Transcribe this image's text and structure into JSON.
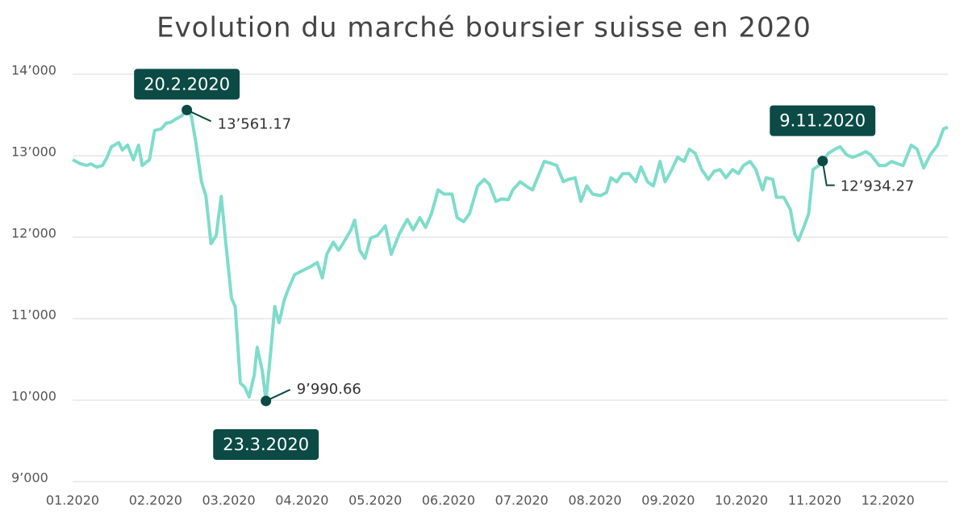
{
  "chart_data": {
    "type": "line",
    "title": "Evolution du marché boursier suisse en 2020",
    "xlim": [
      0,
      11.95
    ],
    "xticks": [
      {
        "value": 0,
        "label": "01.2020"
      },
      {
        "value": 1,
        "label": "02.2020"
      },
      {
        "value": 2,
        "label": "03.2020"
      },
      {
        "value": 3,
        "label": "04.2020"
      },
      {
        "value": 4,
        "label": "05.2020"
      },
      {
        "value": 5,
        "label": "06.2020"
      },
      {
        "value": 6,
        "label": "07.2020"
      },
      {
        "value": 7,
        "label": "08.2020"
      },
      {
        "value": 8,
        "label": "09.2020"
      },
      {
        "value": 9,
        "label": "10.2020"
      },
      {
        "value": 10,
        "label": "11.2020"
      },
      {
        "value": 11,
        "label": "12.2020"
      }
    ],
    "ylim": [
      9000,
      14000
    ],
    "yticks": [
      {
        "value": 9000,
        "label": "9’000"
      },
      {
        "value": 10000,
        "label": "10’000"
      },
      {
        "value": 11000,
        "label": "11’000"
      },
      {
        "value": 12000,
        "label": "12’000"
      },
      {
        "value": 13000,
        "label": "13’000"
      },
      {
        "value": 14000,
        "label": "14’000"
      }
    ],
    "grid": true,
    "x": [
      0,
      0.11,
      0.19,
      0.25,
      0.33,
      0.41,
      0.47,
      0.53,
      0.63,
      0.68,
      0.75,
      0.83,
      0.9,
      0.95,
      1.05,
      1.12,
      1.21,
      1.28,
      1.34,
      1.41,
      1.49,
      1.56,
      1.62,
      1.68,
      1.76,
      1.82,
      1.89,
      1.96,
      2.03,
      2.09,
      2.17,
      2.22,
      2.29,
      2.35,
      2.41,
      2.48,
      2.52,
      2.59,
      2.64,
      2.71,
      2.76,
      2.82,
      2.89,
      2.94,
      3.03,
      3.14,
      3.25,
      3.34,
      3.41,
      3.47,
      3.56,
      3.63,
      3.69,
      3.8,
      3.85,
      3.92,
      3.99,
      4.07,
      4.16,
      4.27,
      4.35,
      4.46,
      4.57,
      4.65,
      4.74,
      4.82,
      4.9,
      4.99,
      5.07,
      5.18,
      5.25,
      5.34,
      5.42,
      5.53,
      5.62,
      5.69,
      5.78,
      5.86,
      5.95,
      6.01,
      6.11,
      6.19,
      6.28,
      6.37,
      6.44,
      6.52,
      6.61,
      6.7,
      6.77,
      6.86,
      6.94,
      7.02,
      7.1,
      7.21,
      7.29,
      7.35,
      7.43,
      7.51,
      7.6,
      7.69,
      7.76,
      7.85,
      7.93,
      8.02,
      8.09,
      8.17,
      8.26,
      8.35,
      8.42,
      8.5,
      8.59,
      8.68,
      8.76,
      8.84,
      8.92,
      9.01,
      9.09,
      9.16,
      9.25,
      9.33,
      9.42,
      9.47,
      9.56,
      9.61,
      9.71,
      9.8,
      9.86,
      9.91,
      9.99,
      10.05,
      10.11,
      10.19,
      10.24,
      10.32,
      10.41,
      10.48,
      10.57,
      10.65,
      10.74,
      10.83,
      10.9,
      11.01,
      11.1,
      11.18,
      11.27,
      11.34,
      11.45,
      11.53,
      11.62,
      11.71,
      11.81,
      11.89,
      11.95
    ],
    "series": [
      {
        "color": "#7fdccb",
        "values": [
          12950,
          12900,
          12880,
          12900,
          12860,
          12880,
          12980,
          13110,
          13160,
          13070,
          13130,
          12950,
          13130,
          12880,
          12950,
          13310,
          13330,
          13400,
          13410,
          13450,
          13490,
          13561.17,
          13490,
          13180,
          12680,
          12510,
          11920,
          12020,
          12500,
          11940,
          11250,
          11150,
          10210,
          10160,
          10040,
          10310,
          10650,
          10360,
          9990.66,
          10650,
          11150,
          10950,
          11230,
          11350,
          11540,
          11590,
          11640,
          11690,
          11500,
          11790,
          11940,
          11840,
          11920,
          12090,
          12210,
          11840,
          11740,
          11990,
          12020,
          12140,
          11790,
          12040,
          12220,
          12090,
          12240,
          12120,
          12290,
          12580,
          12530,
          12530,
          12240,
          12190,
          12290,
          12630,
          12710,
          12650,
          12440,
          12470,
          12460,
          12580,
          12680,
          12630,
          12580,
          12780,
          12930,
          12910,
          12880,
          12680,
          12710,
          12730,
          12440,
          12630,
          12530,
          12510,
          12550,
          12730,
          12680,
          12780,
          12780,
          12680,
          12860,
          12680,
          12630,
          12930,
          12680,
          12810,
          12980,
          12930,
          13080,
          13030,
          12830,
          12710,
          12810,
          12830,
          12730,
          12830,
          12780,
          12880,
          12930,
          12830,
          12580,
          12730,
          12710,
          12490,
          12490,
          12340,
          12040,
          11960,
          12140,
          12290,
          12830,
          12880,
          12934.27,
          13030,
          13080,
          13110,
          13010,
          12980,
          13010,
          13050,
          13010,
          12880,
          12880,
          12930,
          12900,
          12880,
          13130,
          13080,
          12850,
          13010,
          13130,
          13330,
          13350
        ]
      }
    ],
    "annotations": [
      {
        "label": "20.2.2020",
        "x": 1.56,
        "value": 13561.17,
        "value_label": "13’561.17"
      },
      {
        "label": "23.3.2020",
        "x": 2.64,
        "value": 9990.66,
        "value_label": "9’990.66"
      },
      {
        "label": "9.11.2020",
        "x": 10.24,
        "value": 12934.27,
        "value_label": "12’934.27"
      }
    ]
  }
}
